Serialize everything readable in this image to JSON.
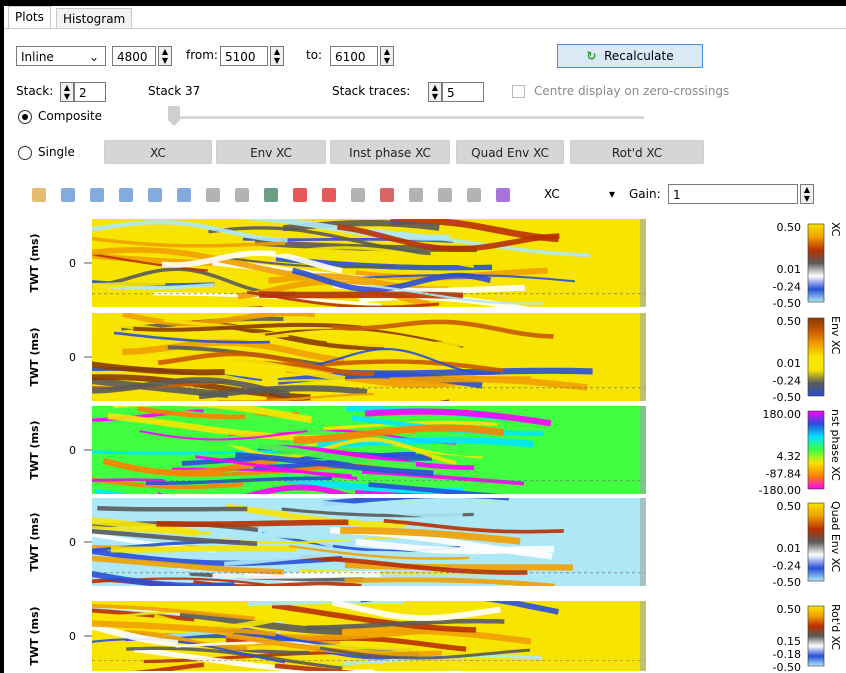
{
  "tabs": [
    "Plots",
    "Histogram"
  ],
  "controls": {
    "mode": "Inline",
    "inline_value": "4800",
    "from_label": "from:",
    "from_value": "5100",
    "to_label": "to:",
    "to_value": "6100",
    "recalculate": "Recalculate",
    "stack_label": "Stack:",
    "stack_value": "2",
    "stack_info": "Stack 37",
    "stack_traces_label": "Stack traces:",
    "stack_traces_value": "5",
    "centre_label": "Centre display on zero-crossings",
    "composite": "Composite",
    "single": "Single",
    "buttons": [
      "XC",
      "Env XC",
      "Inst phase XC",
      "Quad Env XC",
      "Rot'd XC"
    ]
  },
  "toolbar": {
    "attribute": "XC",
    "gain_label": "Gain:",
    "gain_value": "1"
  },
  "panels": [
    {
      "y_label": "TWT (ms)",
      "y_tick": "0",
      "colorbar_title": "XC",
      "colorbar_labels": [
        "0.50",
        "0.01",
        "-0.24",
        "-0.50"
      ]
    },
    {
      "y_label": "TWT (ms)",
      "y_tick": "0",
      "colorbar_title": "Env XC",
      "colorbar_labels": [
        "0.50",
        "0.01",
        "-0.24",
        "-0.50"
      ]
    },
    {
      "y_label": "TWT (ms)",
      "y_tick": "0",
      "colorbar_title": "nst phase XC",
      "colorbar_labels": [
        "180.00",
        "4.32",
        "-87.84",
        "-180.00"
      ]
    },
    {
      "y_label": "TWT (ms)",
      "y_tick": "0",
      "colorbar_title": "Quad Env XC",
      "colorbar_labels": [
        "0.50",
        "0.01",
        "-0.24",
        "-0.50"
      ]
    },
    {
      "y_label": "TWT (ms)",
      "y_tick": "0",
      "colorbar_title": "Rot'd XC",
      "colorbar_labels": [
        "0.50",
        "0.15",
        "-0.18",
        "-0.50"
      ]
    }
  ]
}
